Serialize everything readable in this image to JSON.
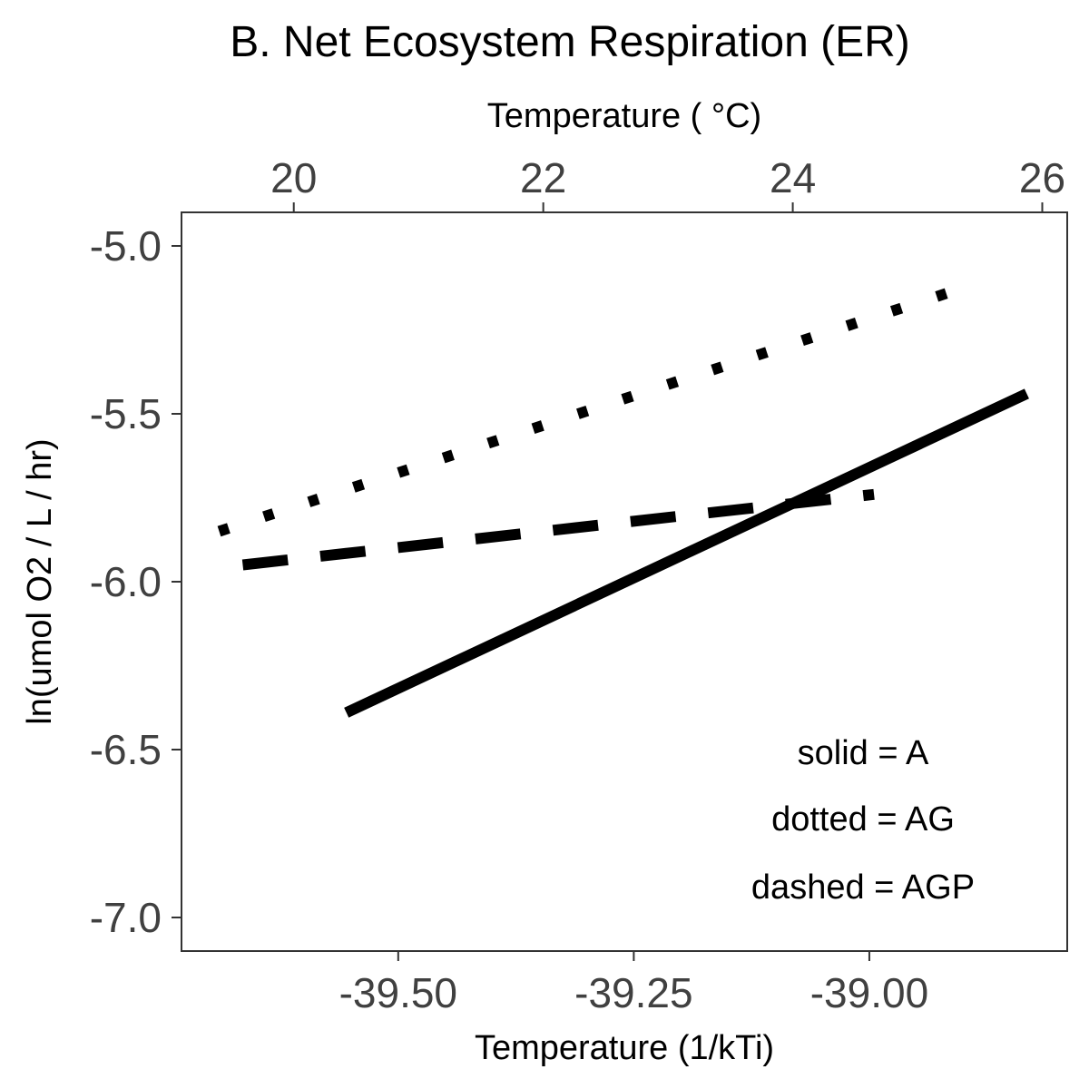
{
  "chart_data": {
    "type": "line",
    "title": "B. Net Ecosystem Respiration (ER)",
    "xlabel": "Temperature (1/kTi)",
    "ylabel": "ln(umol O2 / L / hr)",
    "x2label": "Temperature ( °C)",
    "xlim": [
      -39.73,
      -38.79
    ],
    "ylim": [
      -7.1,
      -4.9
    ],
    "x_ticks": [
      -39.5,
      -39.25,
      -39.0
    ],
    "x_tick_labels": [
      "-39.50",
      "-39.25",
      "-39.00"
    ],
    "y_ticks": [
      -5.0,
      -5.5,
      -6.0,
      -6.5,
      -7.0
    ],
    "y_tick_labels": [
      "-5.0",
      "-5.5",
      "-6.0",
      "-6.5",
      "-7.0"
    ],
    "x2_ticks": [
      20,
      22,
      24,
      26
    ],
    "x2_tick_labels": [
      "20",
      "22",
      "24",
      "26"
    ],
    "x2_lim": [
      19.1,
      26.2
    ],
    "grid": false,
    "series": [
      {
        "style": "solid",
        "color": "#000000",
        "x": [
          -39.555,
          -38.833
        ],
        "y": [
          -6.39,
          -5.44
        ]
      },
      {
        "style": "dotted",
        "color": "#000000",
        "x": [
          -39.69,
          -38.895
        ],
        "y": [
          -5.85,
          -5.12
        ]
      },
      {
        "style": "dashed",
        "color": "#000000",
        "x": [
          -39.665,
          -38.995
        ],
        "y": [
          -5.95,
          -5.74
        ]
      }
    ],
    "annotations": [
      "solid = A",
      "dotted = AG",
      "dashed = AGP"
    ]
  }
}
